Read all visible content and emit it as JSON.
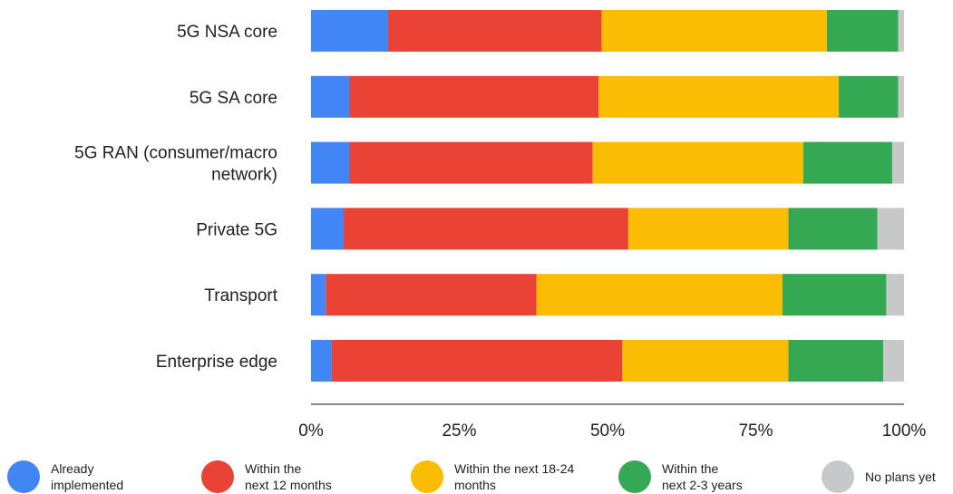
{
  "chart_data": {
    "type": "bar",
    "orientation": "horizontal",
    "stacked": true,
    "categories": [
      "5G NSA core",
      "5G SA core",
      "5G RAN (consumer/macro\nnetwork)",
      "Private 5G",
      "Transport",
      "Enterprise edge"
    ],
    "series": [
      {
        "name": "Already\nimplemented",
        "color": "#4285F4",
        "values": [
          13,
          6.5,
          6.5,
          5.5,
          2.5,
          3.5
        ]
      },
      {
        "name": "Within the\nnext 12 months",
        "color": "#EA4335",
        "values": [
          36,
          42,
          41,
          48,
          35.5,
          49
        ]
      },
      {
        "name": "Within the next 18-24\nmonths",
        "color": "#FBBC04",
        "values": [
          38,
          40.5,
          35.5,
          27,
          41.5,
          28
        ]
      },
      {
        "name": "Within the\nnext 2-3 years",
        "color": "#34A853",
        "values": [
          12,
          10,
          15,
          15,
          17.5,
          16
        ]
      },
      {
        "name": "No plans yet",
        "color": "#C7C8CA",
        "values": [
          1,
          1,
          2,
          4.5,
          3,
          3.5
        ]
      }
    ],
    "xlim": [
      0,
      100
    ],
    "xticks": [
      "0%",
      "25%",
      "50%",
      "75%",
      "100%"
    ],
    "legend_position": "bottom",
    "grid": false
  }
}
